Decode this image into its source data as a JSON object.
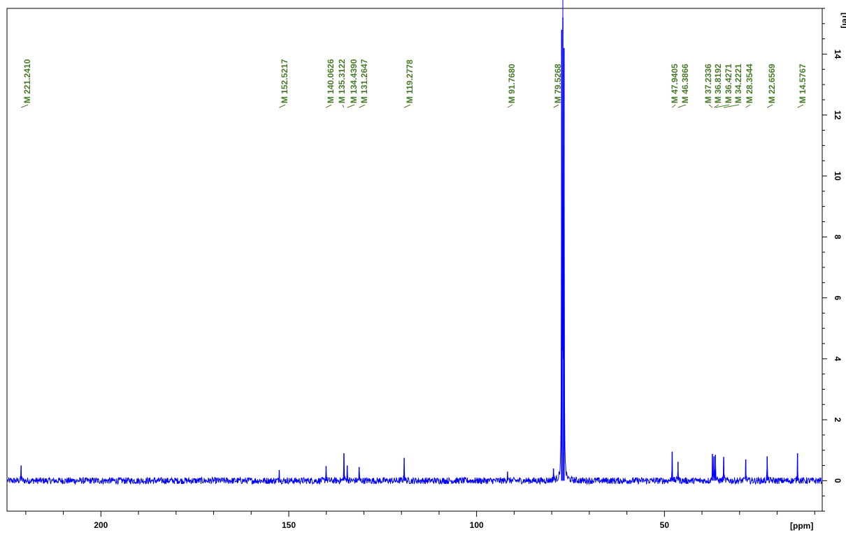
{
  "chart_data": {
    "type": "line",
    "title": "",
    "xlabel": "[ppm]",
    "ylabel": "[rel]",
    "x_axis_reversed": true,
    "xlim": [
      225,
      8
    ],
    "ylim": [
      -1,
      15.5
    ],
    "x_ticks": [
      200,
      150,
      100,
      50
    ],
    "y_ticks": [
      0,
      2,
      4,
      6,
      8,
      10,
      12,
      14
    ],
    "grid": false,
    "legend": "none",
    "colors": {
      "spectrum": "#0000ff",
      "peak_labels": "#4a7a2a",
      "axes": "#000000",
      "background": "#ffffff"
    },
    "series": [
      {
        "peaks": [
          {
            "ppm": 221.241,
            "intensity": 0.5
          },
          {
            "ppm": 152.5217,
            "intensity": 0.35
          },
          {
            "ppm": 140.0626,
            "intensity": 0.48
          },
          {
            "ppm": 135.3122,
            "intensity": 0.9
          },
          {
            "ppm": 134.439,
            "intensity": 0.5
          },
          {
            "ppm": 131.2647,
            "intensity": 0.45
          },
          {
            "ppm": 119.2778,
            "intensity": 0.75
          },
          {
            "ppm": 91.768,
            "intensity": 0.3
          },
          {
            "ppm": 79.5268,
            "intensity": 0.4
          },
          {
            "ppm": 77.36,
            "intensity": 14.8
          },
          {
            "ppm": 77.04,
            "intensity": 15.2
          },
          {
            "ppm": 76.72,
            "intensity": 14.2
          },
          {
            "ppm": 47.9405,
            "intensity": 0.95
          },
          {
            "ppm": 46.3866,
            "intensity": 0.62
          },
          {
            "ppm": 37.2336,
            "intensity": 0.88
          },
          {
            "ppm": 36.8192,
            "intensity": 0.8
          },
          {
            "ppm": 36.4271,
            "intensity": 0.85
          },
          {
            "ppm": 34.2221,
            "intensity": 0.78
          },
          {
            "ppm": 28.3544,
            "intensity": 0.7
          },
          {
            "ppm": 22.6569,
            "intensity": 0.8
          },
          {
            "ppm": 14.5767,
            "intensity": 0.9
          }
        ]
      }
    ],
    "peak_labels": [
      {
        "ppm": 221.241,
        "text": "M 221.2410"
      },
      {
        "ppm": 152.5217,
        "text": "M 152.5217"
      },
      {
        "ppm": 140.0626,
        "text": "M 140.0626"
      },
      {
        "ppm": 135.3122,
        "text": "M 135.3122"
      },
      {
        "ppm": 134.439,
        "text": "M 134.4390"
      },
      {
        "ppm": 131.2647,
        "text": "M 131.2647"
      },
      {
        "ppm": 119.2778,
        "text": "M 119.2778"
      },
      {
        "ppm": 91.768,
        "text": "M 91.7680"
      },
      {
        "ppm": 79.5268,
        "text": "M 79.5268"
      },
      {
        "ppm": 47.9405,
        "text": "M 47.9405"
      },
      {
        "ppm": 46.3866,
        "text": "M 46.3866"
      },
      {
        "ppm": 37.2336,
        "text": "M 37.2336"
      },
      {
        "ppm": 36.8192,
        "text": "M 36.8192"
      },
      {
        "ppm": 36.4271,
        "text": "M 36.4271"
      },
      {
        "ppm": 34.2221,
        "text": "M 34.2221"
      },
      {
        "ppm": 28.3544,
        "text": "M 28.3544"
      },
      {
        "ppm": 22.6569,
        "text": "M 22.6569"
      },
      {
        "ppm": 14.5767,
        "text": "M 14.5767"
      }
    ]
  }
}
